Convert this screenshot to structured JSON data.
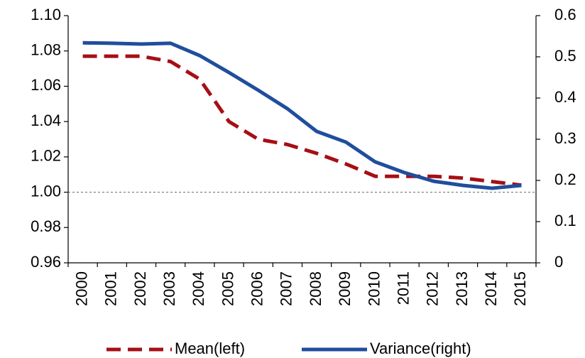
{
  "chart_data": {
    "type": "line",
    "categories": [
      "2000",
      "2001",
      "2002",
      "2003",
      "2004",
      "2005",
      "2006",
      "2007",
      "2008",
      "2009",
      "2010",
      "2011",
      "2012",
      "2013",
      "2014",
      "2015"
    ],
    "series": [
      {
        "name": "Mean(left)",
        "color": "#a50f15",
        "dashed": true,
        "values": [
          1.077,
          1.077,
          1.077,
          1.074,
          1.064,
          1.04,
          1.03,
          1.027,
          1.022,
          1.016,
          1.009,
          1.009,
          1.009,
          1.008,
          1.006,
          1.004
        ]
      },
      {
        "name": "Variance(right)",
        "color": "#1f4e9c",
        "axis": "y2",
        "values": [
          0.534,
          0.533,
          0.531,
          0.533,
          0.503,
          0.462,
          0.419,
          0.374,
          0.319,
          0.293,
          0.245,
          0.219,
          0.198,
          0.188,
          0.181,
          0.188
        ]
      }
    ],
    "ylim": [
      0.96,
      1.1
    ],
    "yticks": [
      {
        "value": 0.96,
        "label": "0.96"
      },
      {
        "value": 0.98,
        "label": "0.98"
      },
      {
        "value": 1.0,
        "label": "1.00"
      },
      {
        "value": 1.02,
        "label": "1.02"
      },
      {
        "value": 1.04,
        "label": "1.04"
      },
      {
        "value": 1.06,
        "label": "1.06"
      },
      {
        "value": 1.08,
        "label": "1.08"
      },
      {
        "value": 1.1,
        "label": "1.10"
      }
    ],
    "y2lim": [
      0,
      0.6
    ],
    "y2ticks": [
      0,
      0.1,
      0.2,
      0.3,
      0.4,
      0.5,
      0.6
    ],
    "reference_line": 1,
    "legend": "bottom"
  }
}
